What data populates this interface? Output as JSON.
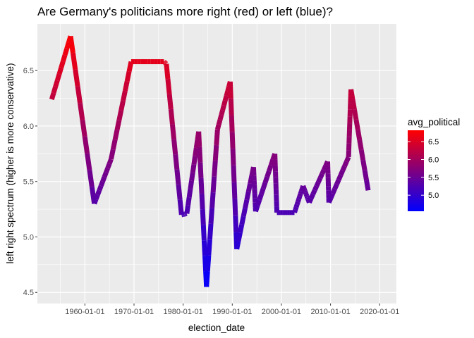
{
  "chart_data": {
    "type": "line",
    "title": "Are Germany's politicians more right (red) or left (blue)?",
    "xlabel": "election_date",
    "ylabel": "left right spectrum (higher is more conservative)",
    "xlim": [
      "1950-05-01",
      "2023-06-01"
    ],
    "ylim": [
      4.4,
      6.92
    ],
    "x_ticks": [
      "1960-01-01",
      "1970-01-01",
      "1980-01-01",
      "1990-01-01",
      "2000-01-01",
      "2010-01-01",
      "2020-01-01"
    ],
    "y_ticks": [
      4.5,
      5.0,
      5.5,
      6.0,
      6.5
    ],
    "y_tick_labels": [
      "4.5",
      "5.0",
      "5.5",
      "6.0",
      "6.5"
    ],
    "grid": true,
    "color_scale": {
      "variable": "avg_political",
      "low": 4.55,
      "high": 6.82,
      "low_color": "#0000ff",
      "high_color": "#ff0000",
      "breaks": [
        6.5,
        6.0,
        5.5,
        5.0
      ],
      "break_labels": [
        "6.5",
        "6.0",
        "5.5",
        "5.0"
      ]
    },
    "series": [
      {
        "points": [
          [
            "1953-04-01",
            6.24
          ],
          [
            "1957-02-01",
            6.81
          ],
          [
            "1961-12-01",
            5.3
          ],
          [
            "1965-05-01",
            5.7
          ],
          [
            "1969-06-01",
            6.58
          ],
          [
            "1976-02-01",
            6.58
          ],
          [
            "1976-08-01",
            6.56
          ],
          [
            "1979-09-01",
            5.2
          ],
          [
            "1980-10-01",
            5.21
          ],
          [
            "1983-03-01",
            5.95
          ],
          [
            "1984-10-01",
            4.55
          ],
          [
            "1987-01-01",
            5.97
          ]
        ]
      },
      {
        "points": [
          [
            "1987-01-01",
            5.97
          ],
          [
            "1989-08-01",
            6.4
          ],
          [
            "1990-12-01",
            4.89
          ],
          [
            "1994-05-01",
            5.63
          ],
          [
            "1994-10-01",
            5.23
          ],
          [
            "1998-09-01",
            5.75
          ],
          [
            "1999-02-01",
            5.22
          ],
          [
            "2002-09-01",
            5.22
          ],
          [
            "2004-06-01",
            5.46
          ],
          [
            "2005-09-01",
            5.31
          ],
          [
            "2009-06-01",
            5.68
          ],
          [
            "2009-09-01",
            5.31
          ],
          [
            "2013-09-01",
            5.72
          ],
          [
            "2014-03-01",
            6.33
          ],
          [
            "2017-09-01",
            5.42
          ]
        ]
      }
    ]
  }
}
